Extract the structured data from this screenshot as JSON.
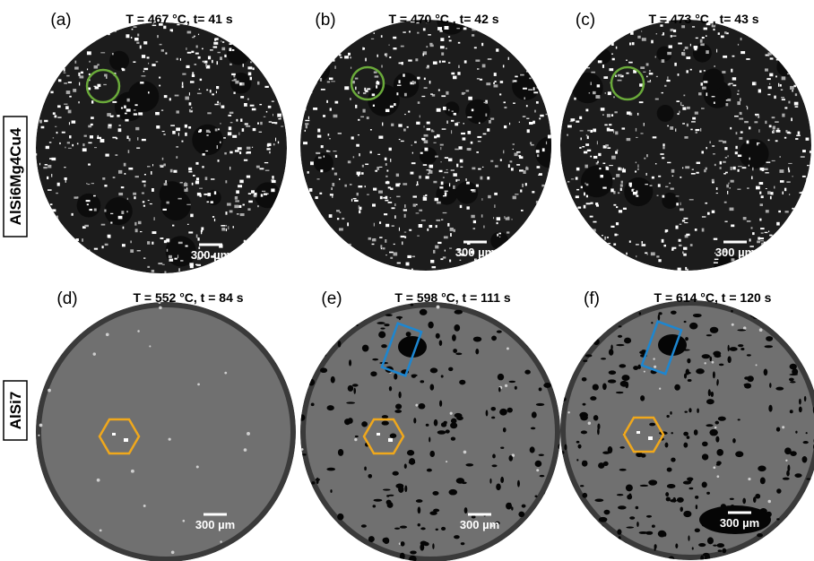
{
  "row_labels": [
    "AlSi6Mg4Cu4",
    "AlSi7"
  ],
  "panels": [
    {
      "label": "(a)",
      "caption": "T = 467 °C, t= 41 s",
      "scale_bar": "300 µm"
    },
    {
      "label": "(b)",
      "caption": "T = 470 °C , t= 42 s",
      "scale_bar": "300 µm"
    },
    {
      "label": "(c)",
      "caption": "T = 473 °C , t= 43 s",
      "scale_bar": "300 µm"
    },
    {
      "label": "(d)",
      "caption": "T = 552 °C, t = 84 s",
      "scale_bar": "300 µm"
    },
    {
      "label": "(e)",
      "caption": "T = 598 °C, t = 111 s",
      "scale_bar": "300 µm"
    },
    {
      "label": "(f)",
      "caption": "T = 614 °C, t = 120 s",
      "scale_bar": "300 µm"
    }
  ]
}
